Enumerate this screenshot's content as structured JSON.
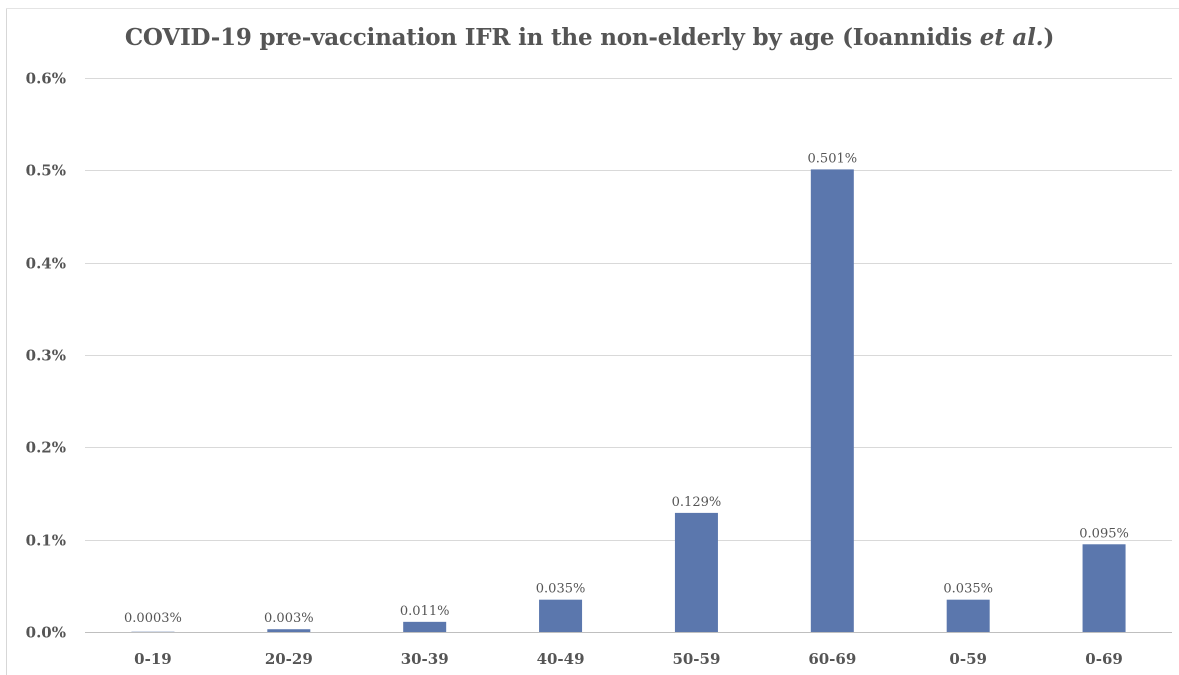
{
  "chart_data": {
    "type": "bar",
    "title": {
      "pre": "COVID-19 pre-vaccination IFR in the non-elderly by age (Ioannidis ",
      "italic": "et al.",
      "post": ")"
    },
    "categories": [
      "0-19",
      "20-29",
      "30-39",
      "40-49",
      "50-59",
      "60-69",
      "0-59",
      "0-69"
    ],
    "values": [
      0.0003,
      0.003,
      0.011,
      0.035,
      0.129,
      0.501,
      0.035,
      0.095
    ],
    "data_labels": [
      "0.0003%",
      "0.003%",
      "0.011%",
      "0.035%",
      "0.129%",
      "0.501%",
      "0.035%",
      "0.095%"
    ],
    "ylim": [
      0,
      0.6
    ],
    "yticks": [
      0,
      0.1,
      0.2,
      0.3,
      0.4,
      0.5,
      0.6
    ],
    "ytick_labels": [
      "0.0%",
      "0.1%",
      "0.2%",
      "0.3%",
      "0.4%",
      "0.5%",
      "0.6%"
    ],
    "xlabel": "",
    "ylabel": "",
    "grid": true,
    "legend": false,
    "bar_color": "#5b77ad",
    "grid_color": "#d9d9d9",
    "text_color": "#555555"
  }
}
